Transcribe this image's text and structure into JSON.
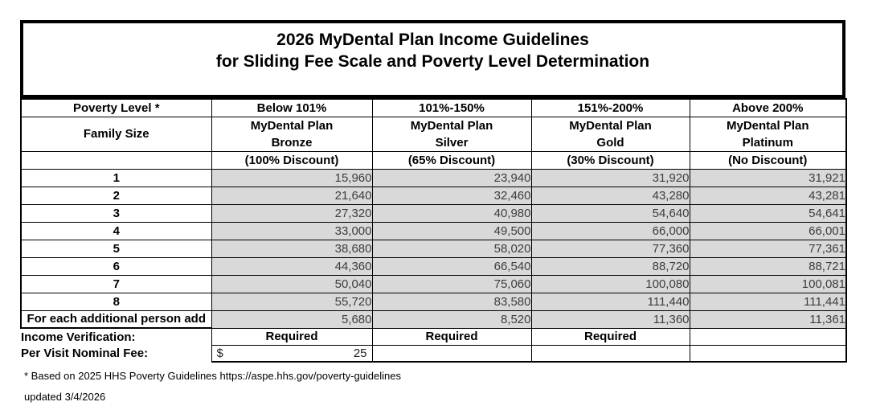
{
  "title": {
    "line1": "2026 MyDental Plan Income Guidelines",
    "line2": "for Sliding Fee Scale and Poverty Level Determination"
  },
  "table": {
    "header": {
      "poverty_label": "Poverty Level *",
      "family_size_label": "Family Size",
      "columns": [
        {
          "range": "Below 101%",
          "plan_line1": "MyDental Plan",
          "plan_line2": "Bronze",
          "discount": "(100% Discount)"
        },
        {
          "range": "101%-150%",
          "plan_line1": "MyDental Plan",
          "plan_line2": "Silver",
          "discount": "(65% Discount)"
        },
        {
          "range": "151%-200%",
          "plan_line1": "MyDental Plan",
          "plan_line2": "Gold",
          "discount": "(30% Discount)"
        },
        {
          "range": "Above 200%",
          "plan_line1": "MyDental Plan",
          "plan_line2": "Platinum",
          "discount": "(No Discount)"
        }
      ]
    },
    "rows": [
      {
        "label": "1",
        "values": [
          "15,960",
          "23,940",
          "31,920",
          "31,921"
        ]
      },
      {
        "label": "2",
        "values": [
          "21,640",
          "32,460",
          "43,280",
          "43,281"
        ]
      },
      {
        "label": "3",
        "values": [
          "27,320",
          "40,980",
          "54,640",
          "54,641"
        ]
      },
      {
        "label": "4",
        "values": [
          "33,000",
          "49,500",
          "66,000",
          "66,001"
        ]
      },
      {
        "label": "5",
        "values": [
          "38,680",
          "58,020",
          "77,360",
          "77,361"
        ]
      },
      {
        "label": "6",
        "values": [
          "44,360",
          "66,540",
          "88,720",
          "88,721"
        ]
      },
      {
        "label": "7",
        "values": [
          "50,040",
          "75,060",
          "100,080",
          "100,081"
        ]
      },
      {
        "label": "8",
        "values": [
          "55,720",
          "83,580",
          "111,440",
          "111,441"
        ]
      },
      {
        "label": "For each additional person add",
        "values": [
          "5,680",
          "8,520",
          "11,360",
          "11,361"
        ]
      }
    ],
    "income_verification": {
      "label": "Income Verification:",
      "values": [
        "Required",
        "Required",
        "Required",
        ""
      ]
    },
    "per_visit_fee": {
      "label": "Per Visit Nominal Fee:",
      "currency": "$",
      "amount": "25"
    }
  },
  "footnotes": {
    "line1": "* Based on 2025 HHS Poverty Guidelines https://aspe.hhs.gov/poverty-guidelines",
    "line2": "updated 3/4/2026"
  },
  "colors": {
    "cell_gray": "#d9d9d9",
    "border": "#000000",
    "value_text": "#3d3d3d"
  }
}
